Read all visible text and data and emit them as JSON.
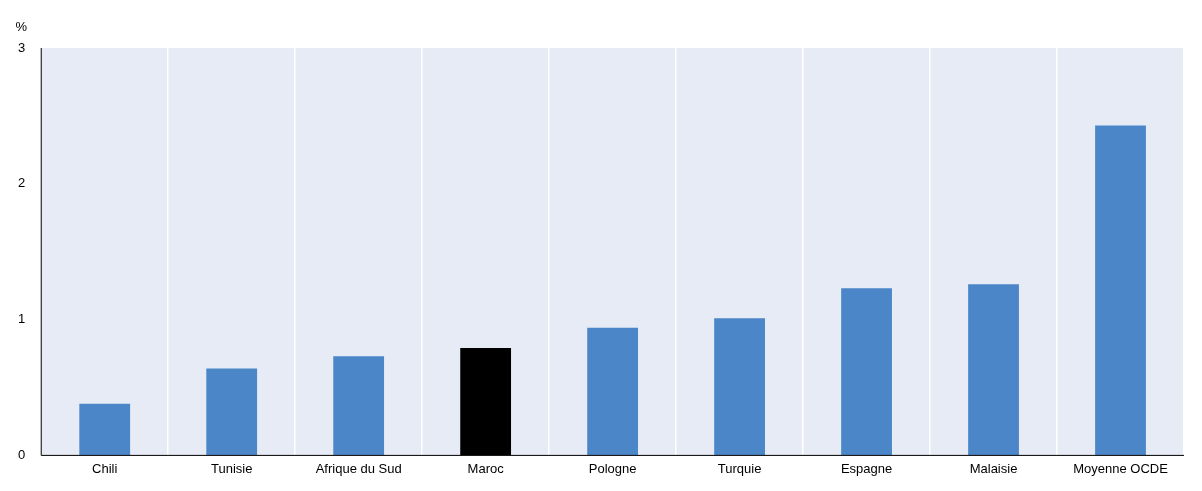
{
  "chart_data": {
    "type": "bar",
    "ylabel": "%",
    "categories": [
      "Chili",
      "Tunisie",
      "Afrique du Sud",
      "Maroc",
      "Pologne",
      "Turquie",
      "Espagne",
      "Malaisie",
      "Moyenne OCDE"
    ],
    "values": [
      0.38,
      0.64,
      0.73,
      0.79,
      0.94,
      1.01,
      1.23,
      1.26,
      2.43
    ],
    "colors": [
      "#4a86c8",
      "#4a86c8",
      "#4a86c8",
      "#000000",
      "#4a86c8",
      "#4a86c8",
      "#4a86c8",
      "#4a86c8",
      "#4a86c8"
    ],
    "ylim": [
      0,
      3
    ],
    "yticks": [
      0,
      1,
      2,
      3
    ],
    "grid": "x",
    "legend": false
  }
}
